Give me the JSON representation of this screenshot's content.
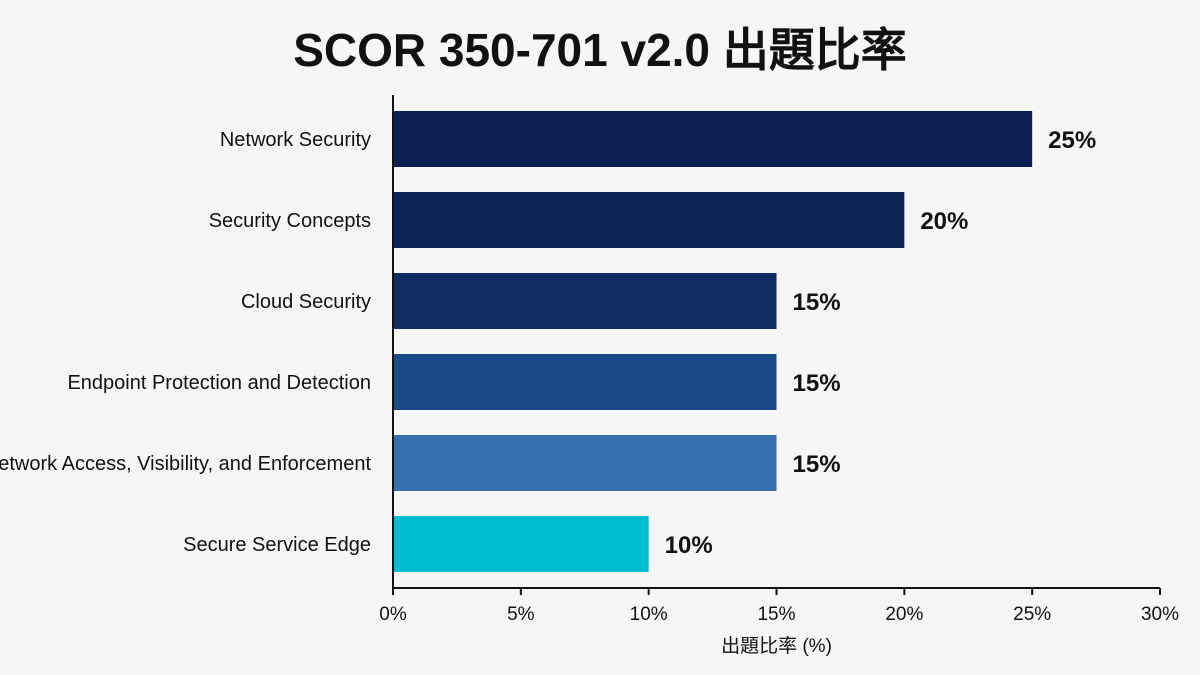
{
  "chart_data": {
    "type": "bar",
    "orientation": "horizontal",
    "title": "SCOR 350-701 v2.0 出題比率",
    "xlabel": "出題比率 (%)",
    "ylabel": "",
    "xlim": [
      0,
      30
    ],
    "x_ticks": [
      "0%",
      "5%",
      "10%",
      "15%",
      "20%",
      "25%",
      "30%"
    ],
    "x_tick_values": [
      0,
      5,
      10,
      15,
      20,
      25,
      30
    ],
    "categories": [
      "Network Security",
      "Security Concepts",
      "Cloud Security",
      "Endpoint Protection and Detection",
      "Network Access, Visibility, and Enforcement",
      "Secure Service Edge"
    ],
    "values": [
      25,
      20,
      15,
      15,
      15,
      10
    ],
    "value_labels": [
      "25%",
      "20%",
      "15%",
      "15%",
      "15%",
      "10%"
    ],
    "colors": [
      "#0c1f52",
      "#0c2559",
      "#0f2c63",
      "#184a87",
      "#3570b0",
      "#00bccf"
    ],
    "grid": false,
    "legend": "none"
  }
}
